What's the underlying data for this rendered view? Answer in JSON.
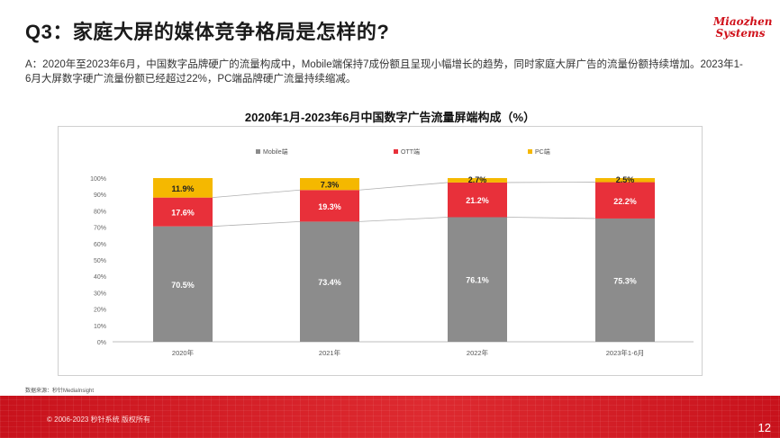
{
  "header": {
    "title": "Q3：家庭大屏的媒体竞争格局是怎样的?",
    "logo_line1": "Miaozhen",
    "logo_line2": "Systems"
  },
  "summary": "A：2020年至2023年6月，中国数字品牌硬广的流量构成中，Mobile端保持7成份额且呈现小幅增长的趋势，同时家庭大屏广告的流量份额持续增加。2023年1-6月大屏数字硬广流量份额已经超过22%，PC端品牌硬广流量持续缩减。",
  "source": "数据来源：秒针MediaInsight",
  "footer": {
    "copyright": "© 2006-2023 秒针系统 版权所有",
    "page_number": "12"
  },
  "colors": {
    "mobile": "#8c8c8c",
    "ott": "#e8303a",
    "pc": "#f5b800",
    "brand": "#d0121b"
  },
  "chart_data": {
    "type": "bar",
    "stacked": true,
    "title": "2020年1月-2023年6月中国数字广告流量屏端构成（%）",
    "categories": [
      "2020年",
      "2021年",
      "2022年",
      "2023年1-6月"
    ],
    "series": [
      {
        "name": "Mobile端",
        "values": [
          70.5,
          73.4,
          76.1,
          75.3
        ],
        "labels": [
          "70.5%",
          "73.4%",
          "76.1%",
          "75.3%"
        ]
      },
      {
        "name": "OTT端",
        "values": [
          17.6,
          19.3,
          21.2,
          22.2
        ],
        "labels": [
          "17.6%",
          "19.3%",
          "21.2%",
          "22.2%"
        ]
      },
      {
        "name": "PC端",
        "values": [
          11.9,
          7.3,
          2.7,
          2.5
        ],
        "labels": [
          "11.9%",
          "7.3%",
          "2.7%",
          "2.5%"
        ]
      }
    ],
    "yticks": [
      "0%",
      "10%",
      "20%",
      "30%",
      "40%",
      "50%",
      "60%",
      "70%",
      "80%",
      "90%",
      "100%"
    ],
    "ylim": [
      0,
      100
    ],
    "legend": "top",
    "grid": false,
    "connector_lines": true
  }
}
